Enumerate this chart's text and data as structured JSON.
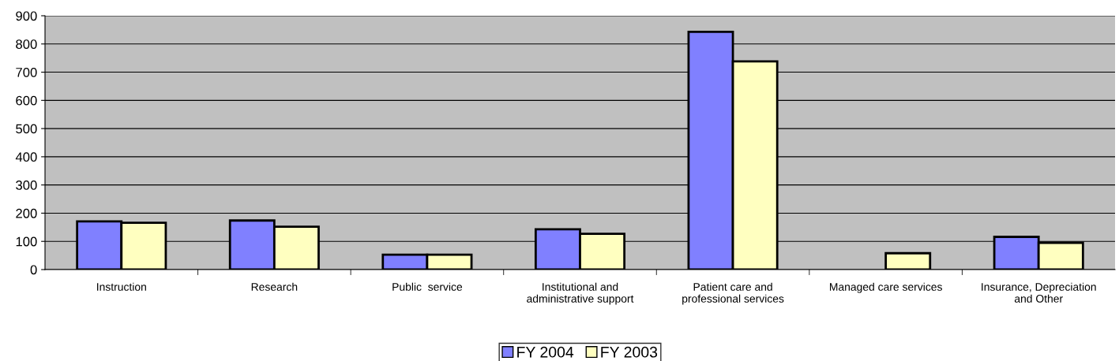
{
  "chart_data": {
    "type": "bar",
    "categories": [
      "Instruction",
      "Research",
      "Public  service",
      "Institutional and\nadministrative support",
      "Patient care and\nprofessional services",
      "Managed care services",
      "Insurance, Depreciation\nand Other"
    ],
    "series": [
      {
        "name": "FY 2004",
        "color": "#8080ff",
        "values": [
          171,
          174,
          53,
          143,
          843,
          null,
          116
        ]
      },
      {
        "name": "FY 2003",
        "color": "#ffffc0",
        "values": [
          166,
          152,
          53,
          127,
          738,
          58,
          95
        ]
      }
    ],
    "ylim": [
      0,
      900
    ],
    "yticks": [
      0,
      100,
      200,
      300,
      400,
      500,
      600,
      700,
      800,
      900
    ],
    "grid": "y",
    "legend": "bottom"
  }
}
